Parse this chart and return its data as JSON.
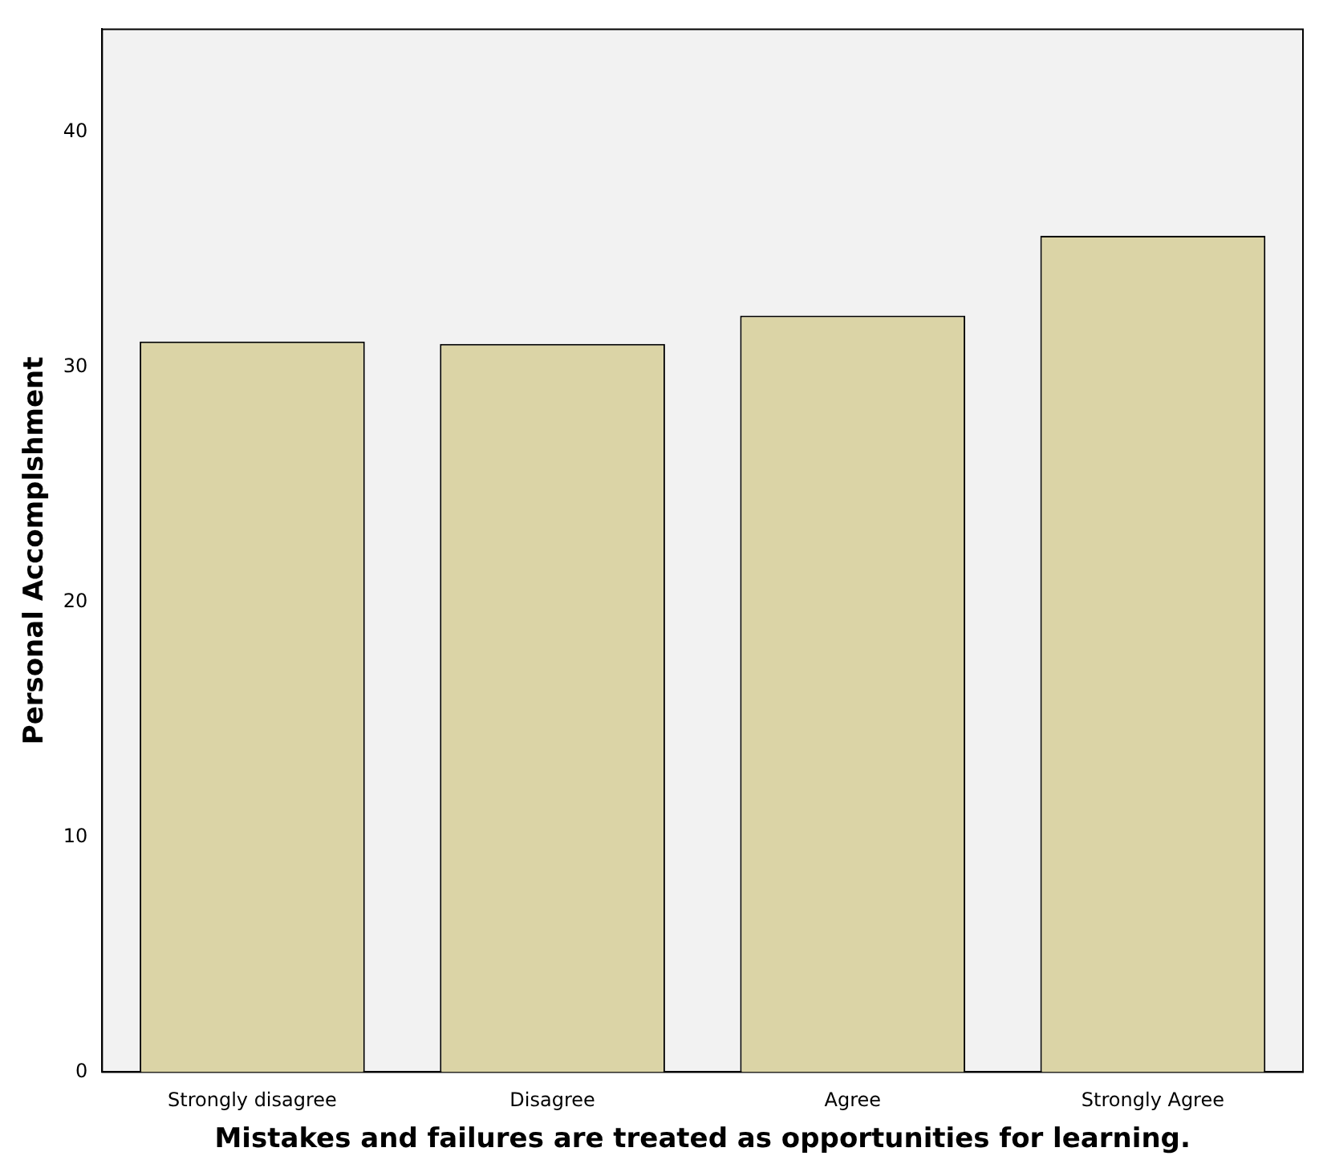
{
  "chart_data": {
    "type": "bar",
    "xlabel": "Mistakes and failures are treated as opportunities for learning.",
    "ylabel": "Personal Accomplshment",
    "categories": [
      "Strongly disagree",
      "Disagree",
      "Agree",
      "Strongly Agree"
    ],
    "values": [
      31.1,
      31.0,
      32.2,
      35.6
    ],
    "color": "#dbd4a6",
    "ylim": [
      0,
      44.4
    ],
    "yticks": [
      0,
      10,
      20,
      30,
      40
    ]
  }
}
